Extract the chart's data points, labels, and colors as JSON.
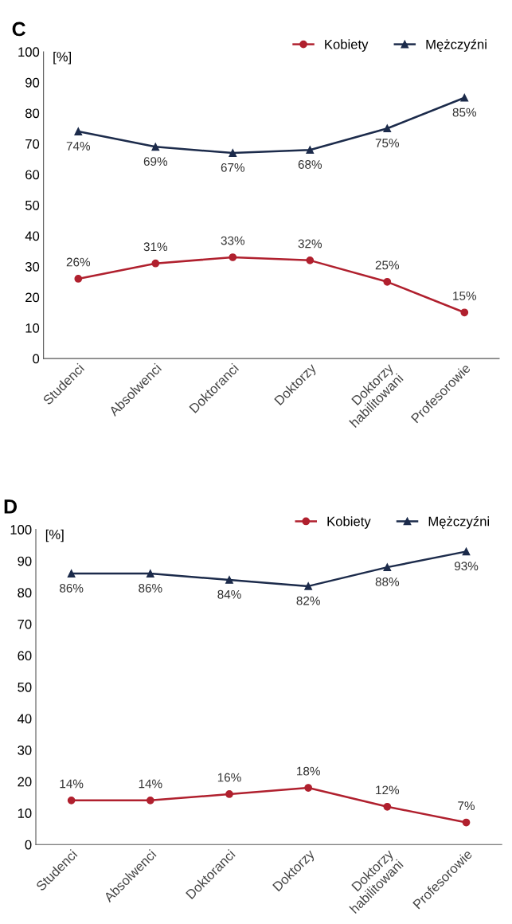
{
  "chart_data": [
    {
      "type": "line",
      "title": "C",
      "ylabel": "[%]",
      "categories": [
        "Studenci",
        "Absolwenci",
        "Doktoranci",
        "Doktorzy",
        "Doktorzy\nhabilitowani",
        "Profesorowie"
      ],
      "ylim": [
        0,
        100
      ],
      "yticks": [
        0,
        10,
        20,
        30,
        40,
        50,
        60,
        70,
        80,
        90,
        100
      ],
      "grid": false,
      "legend": "top right",
      "series": [
        {
          "name": "Kobiety",
          "color": "#b0202e",
          "marker": "circle",
          "values": [
            26,
            31,
            33,
            32,
            25,
            15
          ],
          "value_labels": [
            "26%",
            "31%",
            "33%",
            "32%",
            "25%",
            "15%"
          ]
        },
        {
          "name": "Mężczyźni",
          "color": "#1c2b4b",
          "marker": "triangle",
          "values": [
            74,
            69,
            67,
            68,
            75,
            85
          ],
          "value_labels": [
            "74%",
            "69%",
            "67%",
            "68%",
            "75%",
            "85%"
          ]
        }
      ]
    },
    {
      "type": "line",
      "title": "D",
      "ylabel": "[%]",
      "categories": [
        "Studenci",
        "Absolwenci",
        "Doktoranci",
        "Doktorzy",
        "Doktorzy\nhabilitowani",
        "Profesorowie"
      ],
      "ylim": [
        0,
        100
      ],
      "yticks": [
        0,
        10,
        20,
        30,
        40,
        50,
        60,
        70,
        80,
        90,
        100
      ],
      "grid": false,
      "legend": "top right",
      "series": [
        {
          "name": "Kobiety",
          "color": "#b0202e",
          "marker": "circle",
          "values": [
            14,
            14,
            16,
            18,
            12,
            7
          ],
          "value_labels": [
            "14%",
            "14%",
            "16%",
            "18%",
            "12%",
            "7%"
          ]
        },
        {
          "name": "Mężczyźni",
          "color": "#1c2b4b",
          "marker": "triangle",
          "values": [
            86,
            86,
            84,
            82,
            88,
            93
          ],
          "value_labels": [
            "86%",
            "86%",
            "84%",
            "82%",
            "88%",
            "93%"
          ]
        }
      ]
    }
  ]
}
